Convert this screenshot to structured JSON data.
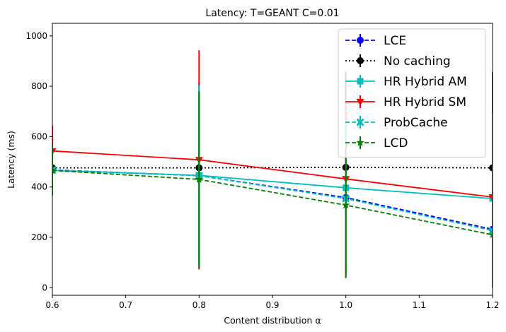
{
  "chart_data": {
    "type": "line",
    "title": "Latency: T=GEANT C=0.01",
    "xlabel": "Content distribution α",
    "ylabel": "Latency (ms)",
    "xlim": [
      0.6,
      1.2
    ],
    "ylim": [
      -30,
      1050
    ],
    "xticks": [
      0.6,
      0.7,
      0.8,
      0.9,
      1.0,
      1.1,
      1.2
    ],
    "xtick_labels": [
      "0.6",
      "0.7",
      "0.8",
      "0.9",
      "1.0",
      "1.1",
      "1.2"
    ],
    "yticks": [
      0,
      200,
      400,
      600,
      800,
      1000
    ],
    "ytick_labels": [
      "0",
      "200",
      "400",
      "600",
      "800",
      "1000"
    ],
    "grid": false,
    "legend_position": "top-right",
    "x": [
      0.6,
      0.8,
      1.0,
      1.2
    ],
    "series": [
      {
        "name": "LCE",
        "values": [
          468,
          445,
          358,
          232
        ],
        "err_low": [
          100,
          370,
          300,
          210
        ],
        "err_high": [
          100,
          370,
          310,
          200
        ],
        "color": "#0000ff",
        "dash": "dashed",
        "marker": "circle"
      },
      {
        "name": "No caching",
        "values": [
          476,
          476,
          478,
          476
        ],
        "err_low": [
          10,
          30,
          40,
          60
        ],
        "err_high": [
          10,
          30,
          380,
          380
        ],
        "color": "#000000",
        "dash": "dotted",
        "marker": "circle"
      },
      {
        "name": "HR Hybrid AM",
        "values": [
          466,
          446,
          397,
          354
        ],
        "err_low": [
          60,
          360,
          220,
          200
        ],
        "err_high": [
          60,
          360,
          240,
          70
        ],
        "color": "#00bfbf",
        "dash": "solid",
        "marker": "square"
      },
      {
        "name": "HR Hybrid SM",
        "values": [
          543,
          508,
          432,
          360
        ],
        "err_low": [
          100,
          435,
          385,
          335
        ],
        "err_high": [
          100,
          435,
          300,
          335
        ],
        "color": "#ff0000",
        "dash": "solid",
        "marker": "triangle-down"
      },
      {
        "name": "ProbCache",
        "values": [
          467,
          445,
          354,
          227
        ],
        "err_low": [
          100,
          360,
          310,
          200
        ],
        "err_high": [
          100,
          360,
          310,
          150
        ],
        "color": "#00bfbf",
        "dash": "dashed",
        "marker": "x"
      },
      {
        "name": "LCD",
        "values": [
          466,
          430,
          328,
          210
        ],
        "err_low": [
          100,
          350,
          290,
          210
        ],
        "err_high": [
          100,
          350,
          260,
          200
        ],
        "color": "#008000",
        "dash": "dashed",
        "marker": "star"
      }
    ]
  }
}
